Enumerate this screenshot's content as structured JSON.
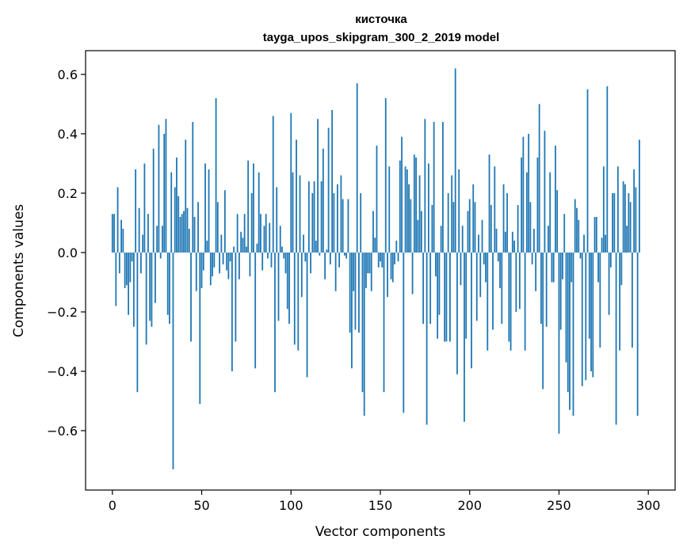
{
  "chart_data": {
    "type": "bar",
    "title": "кисточка",
    "subtitle": "tayga_upos_skipgram_300_2_2019 model",
    "xlabel": "Vector components",
    "ylabel": "Components values",
    "xlim": [
      -15,
      315
    ],
    "ylim": [
      -0.8,
      0.68
    ],
    "xticks": [
      0,
      50,
      100,
      150,
      200,
      250,
      300
    ],
    "yticks": [
      -0.6,
      -0.4,
      -0.2,
      0.0,
      0.2,
      0.4,
      0.6
    ],
    "ytick_labels": [
      "−0.6",
      "−0.4",
      "−0.2",
      "0.0",
      "0.2",
      "0.4",
      "0.6"
    ],
    "bar_color": "#1f77b4",
    "grid": false,
    "values": [
      0.13,
      0.13,
      -0.18,
      0.22,
      -0.07,
      0.11,
      0.08,
      -0.12,
      -0.11,
      -0.21,
      -0.1,
      -0.03,
      -0.25,
      0.28,
      -0.47,
      0.15,
      -0.07,
      0.06,
      0.3,
      -0.31,
      0.13,
      -0.23,
      -0.25,
      0.35,
      -0.17,
      0.09,
      0.43,
      -0.02,
      0.09,
      0.4,
      0.45,
      -0.21,
      -0.24,
      0.27,
      -0.73,
      0.22,
      0.32,
      0.19,
      0.12,
      0.13,
      0.14,
      0.38,
      0.15,
      0.08,
      -0.3,
      0.44,
      0.12,
      -0.13,
      0.17,
      -0.51,
      -0.12,
      -0.06,
      0.3,
      0.04,
      0.28,
      -0.11,
      -0.08,
      -0.05,
      0.52,
      0.17,
      -0.07,
      0.06,
      -0.04,
      0.21,
      -0.06,
      -0.09,
      -0.03,
      -0.4,
      0.02,
      -0.3,
      0.13,
      -0.09,
      0.07,
      0.05,
      0.13,
      0.02,
      0.31,
      -0.08,
      0.2,
      0.3,
      -0.39,
      0.03,
      0.27,
      0.13,
      -0.06,
      0.09,
      0.13,
      -0.02,
      0.1,
      -0.05,
      0.46,
      -0.47,
      0.22,
      -0.23,
      0.09,
      0.02,
      -0.02,
      -0.07,
      -0.19,
      -0.24,
      0.47,
      0.27,
      -0.31,
      0.38,
      -0.33,
      0.26,
      -0.15,
      0.06,
      -0.03,
      -0.42,
      0.24,
      -0.07,
      0.2,
      0.24,
      0.04,
      0.45,
      -0.01,
      0.24,
      0.35,
      -0.09,
      0.01,
      0.42,
      -0.04,
      0.48,
      0.2,
      -0.13,
      0.23,
      -0.05,
      0.26,
      0.18,
      -0.01,
      -0.02,
      0.18,
      -0.27,
      -0.39,
      -0.13,
      -0.26,
      0.57,
      -0.27,
      0.2,
      -0.47,
      -0.55,
      -0.12,
      -0.07,
      -0.07,
      -0.13,
      0.14,
      0.05,
      0.36,
      -0.05,
      -0.03,
      -0.05,
      -0.47,
      0.52,
      -0.15,
      0.29,
      -0.09,
      -0.1,
      -0.04,
      0.04,
      -0.03,
      0.31,
      0.39,
      -0.54,
      0.29,
      0.28,
      0.23,
      0.18,
      -0.14,
      0.33,
      0.32,
      0.11,
      0.26,
      0.14,
      -0.24,
      0.45,
      -0.58,
      0.3,
      -0.24,
      0.16,
      0.44,
      -0.08,
      -0.29,
      -0.21,
      0.09,
      0.44,
      -0.3,
      -0.3,
      0.2,
      -0.3,
      0.26,
      0.17,
      0.62,
      -0.41,
      0.28,
      -0.11,
      0.09,
      -0.57,
      -0.29,
      0.14,
      0.18,
      -0.39,
      0.23,
      0.17,
      -0.23,
      0.06,
      -0.15,
      0.11,
      -0.04,
      -0.1,
      -0.33,
      0.33,
      0.16,
      -0.26,
      0.29,
      0.08,
      -0.03,
      -0.12,
      -0.24,
      0.23,
      0.07,
      0.2,
      -0.3,
      -0.33,
      0.07,
      0.04,
      -0.2,
      0.16,
      -0.19,
      0.32,
      0.39,
      -0.33,
      0.27,
      0.4,
      0.17,
      -0.04,
      0.08,
      -0.13,
      0.32,
      0.5,
      -0.24,
      -0.46,
      0.41,
      -0.25,
      0.09,
      0.27,
      -0.1,
      -0.1,
      0.36,
      0.21,
      -0.61,
      -0.26,
      -0.09,
      0.13,
      -0.37,
      -0.47,
      -0.53,
      -0.1,
      -0.55,
      0.18,
      0.15,
      0.11,
      -0.02,
      -0.45,
      0.06,
      -0.43,
      0.55,
      -0.29,
      -0.4,
      -0.42,
      0.12,
      0.12,
      -0.1,
      -0.32,
      0.05,
      0.29,
      0.06,
      0.56,
      -0.21,
      -0.05,
      0.2,
      0.2,
      -0.58,
      0.29,
      -0.33,
      -0.11,
      0.24,
      0.23,
      0.09,
      0.2,
      0.17,
      -0.32,
      0.28,
      0.22,
      -0.55,
      0.38
    ]
  }
}
